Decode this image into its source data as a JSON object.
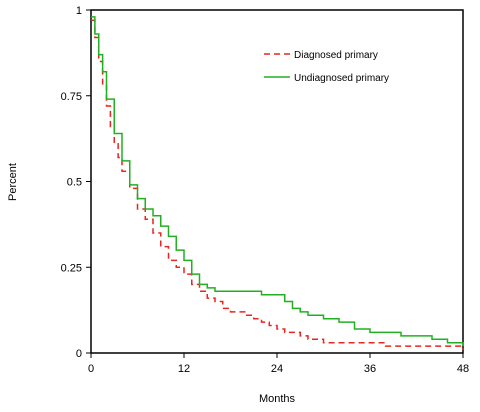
{
  "chart_data": {
    "type": "line",
    "title": "",
    "xlabel": "Months",
    "ylabel": "Percent",
    "xlim": [
      0,
      48
    ],
    "ylim": [
      0,
      1
    ],
    "xticks": [
      0,
      12,
      24,
      36,
      48
    ],
    "xtick_labels": [
      "0",
      "12",
      "24",
      "36",
      "48"
    ],
    "yticks": [
      0,
      0.25,
      0.5,
      0.75,
      1
    ],
    "ytick_labels": [
      "0",
      "0.25",
      "0.5",
      "0.75",
      "1"
    ],
    "grid": false,
    "legend": {
      "position": "top-right"
    },
    "step": true,
    "series": [
      {
        "name": "Diagnosed primary",
        "color": "#e8251f",
        "dash": "dashed",
        "x": [
          0,
          0.5,
          1,
          1.5,
          2,
          2.5,
          3,
          3.5,
          4,
          5,
          6,
          7,
          8,
          9,
          10,
          11,
          12,
          13,
          14,
          15,
          16,
          17,
          18,
          20,
          21,
          22,
          23,
          24,
          25,
          26,
          27,
          28,
          30,
          32,
          36,
          38,
          40,
          44,
          48
        ],
        "values": [
          0.97,
          0.92,
          0.85,
          0.78,
          0.72,
          0.66,
          0.61,
          0.57,
          0.53,
          0.48,
          0.42,
          0.39,
          0.35,
          0.31,
          0.27,
          0.25,
          0.23,
          0.2,
          0.18,
          0.16,
          0.15,
          0.13,
          0.12,
          0.11,
          0.1,
          0.09,
          0.08,
          0.07,
          0.06,
          0.06,
          0.05,
          0.04,
          0.03,
          0.03,
          0.03,
          0.02,
          0.02,
          0.02,
          0.01
        ]
      },
      {
        "name": "Undiagnosed primary",
        "color": "#22b022",
        "dash": "solid",
        "x": [
          0,
          0.5,
          1,
          1.5,
          2,
          3,
          4,
          5,
          6,
          7,
          8,
          9,
          10,
          11,
          12,
          13,
          14,
          15,
          16,
          20,
          22,
          24,
          25,
          26,
          27,
          28,
          30,
          32,
          34,
          36,
          40,
          44,
          46,
          48
        ],
        "values": [
          0.98,
          0.93,
          0.87,
          0.82,
          0.74,
          0.64,
          0.56,
          0.49,
          0.45,
          0.42,
          0.4,
          0.37,
          0.34,
          0.3,
          0.27,
          0.23,
          0.2,
          0.19,
          0.18,
          0.18,
          0.17,
          0.17,
          0.15,
          0.13,
          0.12,
          0.11,
          0.1,
          0.09,
          0.07,
          0.06,
          0.05,
          0.04,
          0.03,
          0.02
        ]
      }
    ]
  }
}
